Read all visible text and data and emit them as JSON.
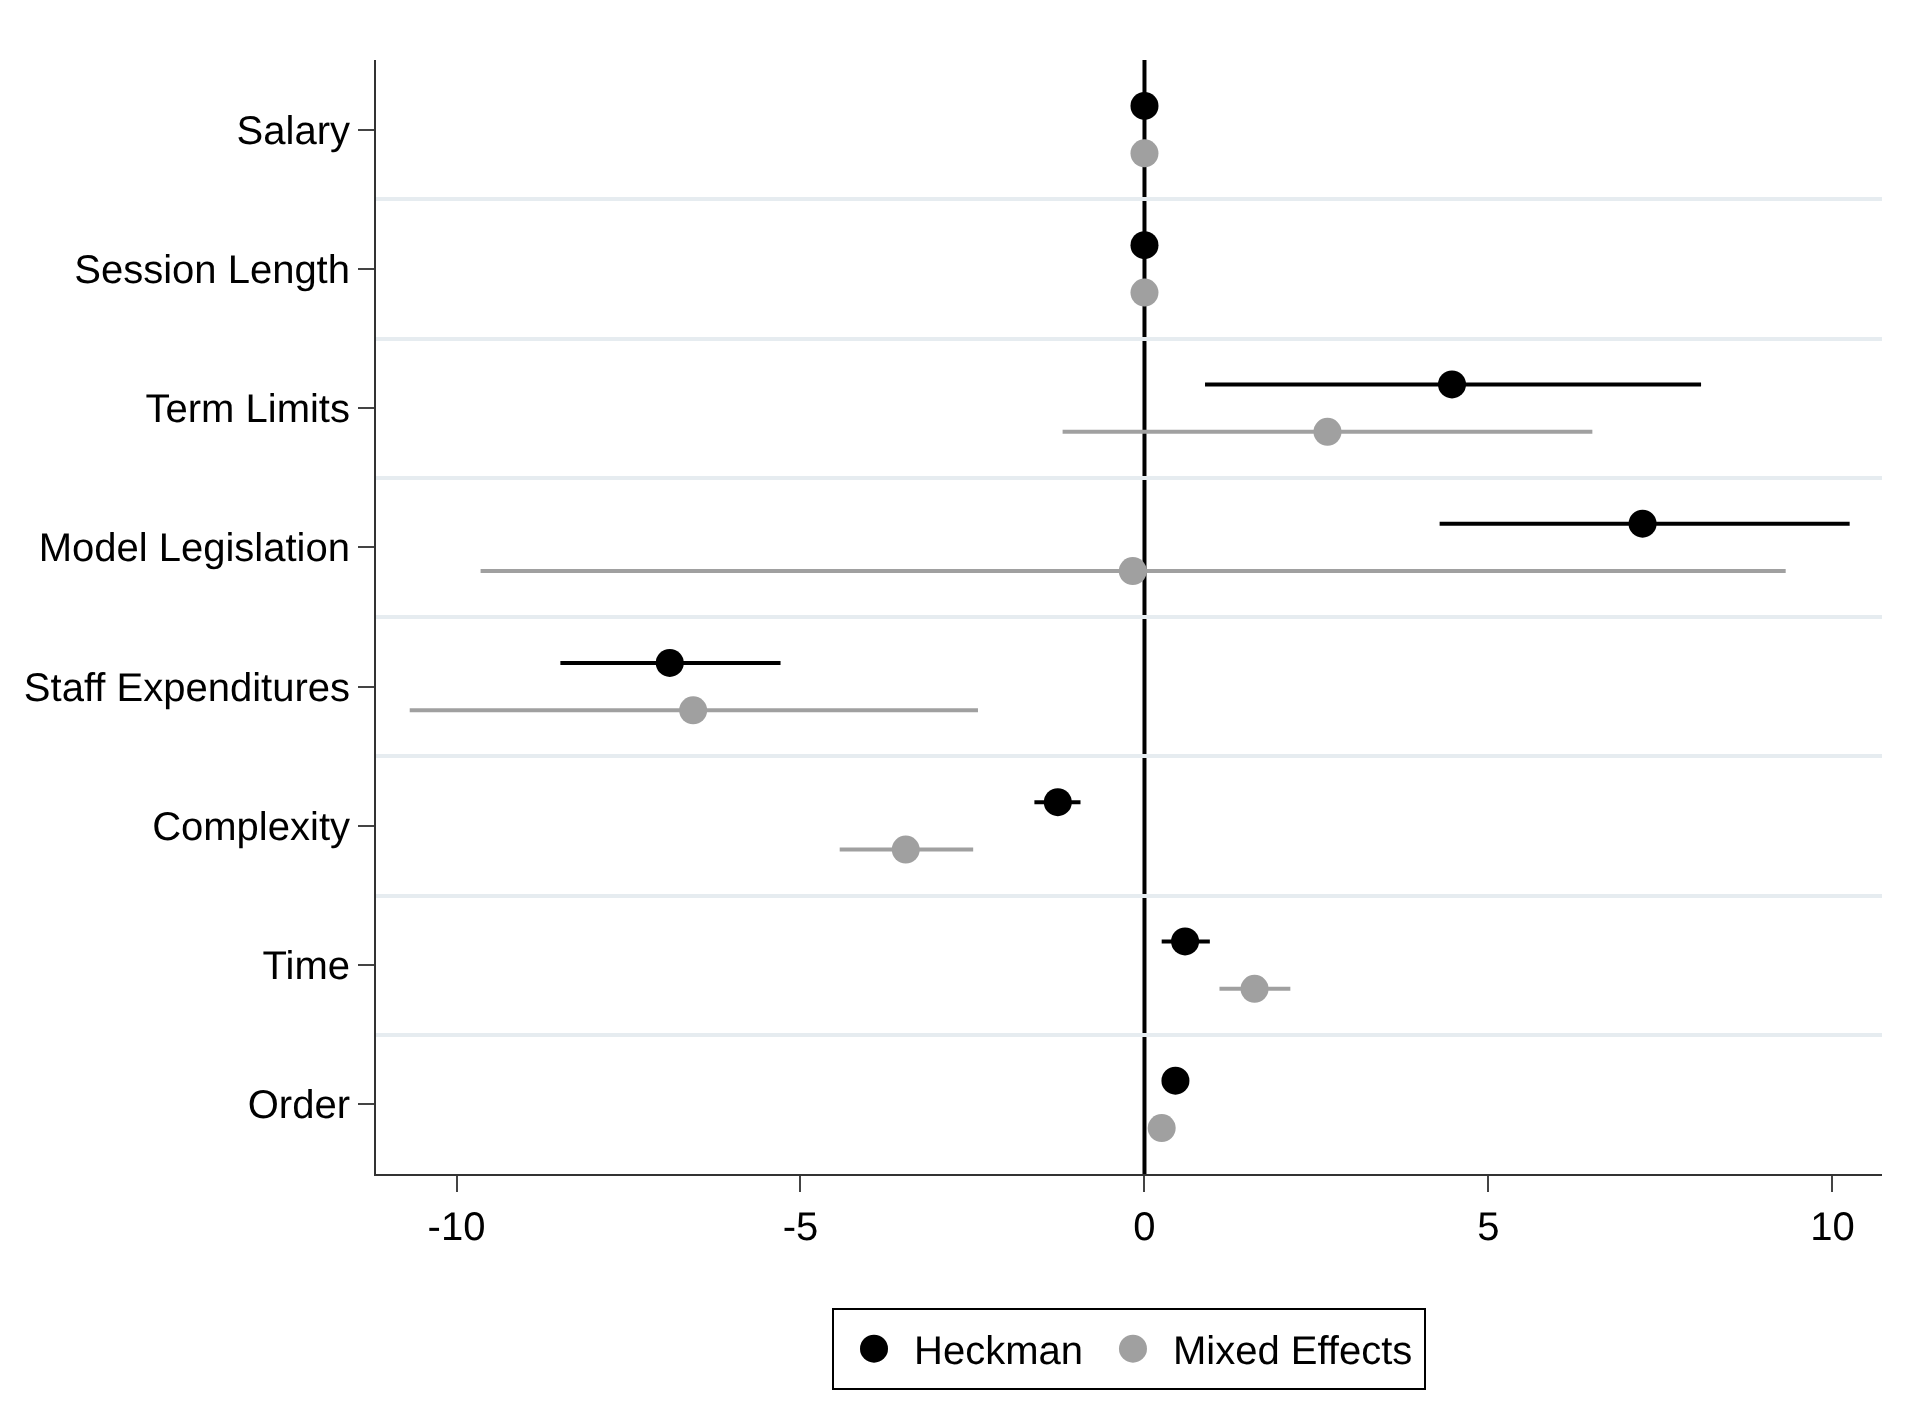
{
  "chart_data": {
    "type": "scatter",
    "orientation": "horizontal",
    "categories": [
      "Salary",
      "Session Length",
      "Term Limits",
      "Model Legislation",
      "Staff Expenditures",
      "Complexity",
      "Time",
      "Order"
    ],
    "series": [
      {
        "name": "Heckman",
        "color": "#000000",
        "values": [
          0,
          0,
          4.47,
          7.24,
          -6.9,
          -1.26,
          0.59,
          0.45
        ],
        "errors": [
          null,
          null,
          [
            0.88,
            8.09
          ],
          [
            4.29,
            10.25
          ],
          [
            -8.49,
            -5.29
          ],
          [
            -1.6,
            -0.93
          ],
          [
            0.25,
            0.95
          ],
          null
        ]
      },
      {
        "name": "Mixed Effects",
        "color": "#a0a0a0",
        "values": [
          0,
          0,
          2.66,
          -0.17,
          -6.56,
          -3.47,
          1.6,
          0.25
        ],
        "errors": [
          null,
          null,
          [
            -1.19,
            6.51
          ],
          [
            -9.65,
            9.32
          ],
          [
            -10.68,
            -2.42
          ],
          [
            -4.43,
            -2.49
          ],
          [
            1.09,
            2.12
          ],
          null
        ]
      }
    ],
    "xlim": [
      -11.17,
      10.72
    ],
    "xticks": [
      -10,
      -5,
      0,
      5,
      10
    ],
    "ref_lines": [
      {
        "axis": "x",
        "value": 0,
        "color": "#000000"
      }
    ],
    "grid": "y",
    "legend": "bottom",
    "marker": "circle"
  }
}
